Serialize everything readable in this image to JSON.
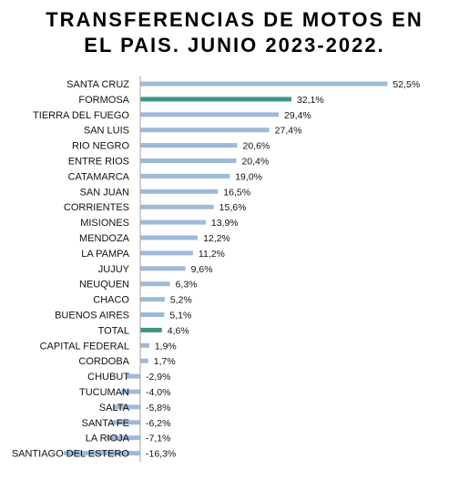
{
  "chart_data": {
    "type": "bar",
    "orientation": "horizontal",
    "title_lines": [
      "TRANSFERENCIAS DE MOTOS EN",
      "EL PAIS. JUNIO 2023-2022."
    ],
    "categories": [
      "SANTA CRUZ",
      "FORMOSA",
      "TIERRA DEL FUEGO",
      "SAN LUIS",
      "RIO NEGRO",
      "ENTRE RIOS",
      "CATAMARCA",
      "SAN JUAN",
      "CORRIENTES",
      "MISIONES",
      "MENDOZA",
      "LA PAMPA",
      "JUJUY",
      "NEUQUEN",
      "CHACO",
      "BUENOS AIRES",
      "TOTAL",
      "CAPITAL FEDERAL",
      "CORDOBA",
      "CHUBUT",
      "TUCUMAN",
      "SALTA",
      "SANTA FE",
      "LA RIOJA",
      "SANTIAGO DEL ESTERO"
    ],
    "values": [
      52.5,
      32.1,
      29.4,
      27.4,
      20.6,
      20.4,
      19.0,
      16.5,
      15.6,
      13.9,
      12.2,
      11.2,
      9.6,
      6.3,
      5.2,
      5.1,
      4.6,
      1.9,
      1.7,
      -2.9,
      -4.0,
      -5.8,
      -6.2,
      -7.1,
      -16.3
    ],
    "value_labels": [
      "52,5%",
      "32,1%",
      "29,4%",
      "27,4%",
      "20,6%",
      "20,4%",
      "19,0%",
      "16,5%",
      "15,6%",
      "13,9%",
      "12,2%",
      "11,2%",
      "9,6%",
      "6,3%",
      "5,2%",
      "5,1%",
      "4,6%",
      "1,9%",
      "1,7%",
      "-2,9%",
      "-4,0%",
      "-5,8%",
      "-6,2%",
      "-7,1%",
      "-16,3%"
    ],
    "highlighted": [
      "FORMOSA",
      "TOTAL"
    ],
    "colors": {
      "default_bar": "#9dbad8",
      "highlight_bar": "#3d9483",
      "axis": "#a6a6a6"
    },
    "grid": false,
    "legend": "none"
  }
}
